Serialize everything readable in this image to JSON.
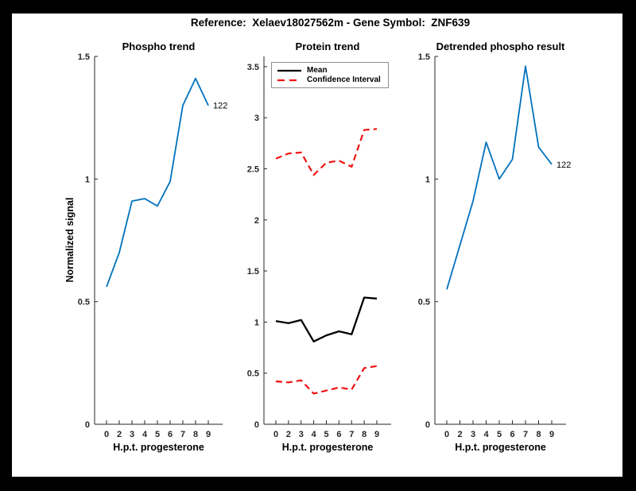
{
  "window": {
    "background_color": "#000000",
    "canvas_color": "#ffffff"
  },
  "header": {
    "suptitle": "Reference:  Xelaev18027562m - Gene Symbol:  ZNF639"
  },
  "colors": {
    "signal_blue": "#0072BD",
    "mean_black": "#000000",
    "ci_red": "#f01414",
    "axis_gray": "#262626"
  },
  "chart_data": [
    {
      "id": "phospho-trend",
      "type": "line",
      "title": "Phospho trend",
      "xlabel": "H.p.t. progesterone",
      "ylabel": "Normalized signal",
      "x_tick_labels": [
        "0",
        "2",
        "3",
        "4",
        "5",
        "6",
        "7",
        "8",
        "9"
      ],
      "yticks": [
        0,
        0.5,
        1,
        1.5
      ],
      "y_tick_labels": [
        "0",
        "0.5",
        "1",
        "1.5"
      ],
      "ylim": [
        0,
        1.5
      ],
      "legend_position": "none",
      "grid": false,
      "series": [
        {
          "name": "Phospho normalized signal",
          "color": "#0072BD",
          "dash": "",
          "width": 1.8,
          "values": [
            0.56,
            0.7,
            0.91,
            0.92,
            0.89,
            0.99,
            1.3,
            1.41,
            1.3
          ]
        }
      ],
      "end_label": "122"
    },
    {
      "id": "protein-trend",
      "type": "line",
      "title": "Protein trend",
      "xlabel": "H.p.t. progesterone",
      "ylabel": "",
      "x_tick_labels": [
        "0",
        "2",
        "3",
        "4",
        "5",
        "6",
        "7",
        "8",
        "9"
      ],
      "yticks": [
        0,
        0.5,
        1,
        1.5,
        2,
        2.5,
        3,
        3.5
      ],
      "y_tick_labels": [
        "0",
        "0.5",
        "1",
        "1.5",
        "2",
        "2.5",
        "3",
        "3.5"
      ],
      "ylim": [
        0,
        3.6
      ],
      "legend_position": "northwest",
      "grid": false,
      "series": [
        {
          "name": "Mean",
          "color": "#000000",
          "dash": "",
          "width": 2.3,
          "values": [
            1.01,
            0.99,
            1.02,
            0.81,
            0.87,
            0.91,
            0.88,
            1.24,
            1.23
          ]
        },
        {
          "name": "Confidence Interval upper",
          "color": "#f01414",
          "dash": "8 5",
          "width": 2.2,
          "values": [
            2.6,
            2.65,
            2.66,
            2.44,
            2.56,
            2.58,
            2.52,
            2.88,
            2.89
          ]
        },
        {
          "name": "Confidence Interval lower",
          "color": "#f01414",
          "dash": "8 5",
          "width": 2.2,
          "values": [
            0.42,
            0.41,
            0.43,
            0.3,
            0.33,
            0.36,
            0.34,
            0.55,
            0.57
          ]
        }
      ],
      "legend": [
        {
          "label": "Mean",
          "color": "#000000",
          "dash": ""
        },
        {
          "label": "Confidence Interval",
          "color": "#f01414",
          "dash": "9 6"
        }
      ],
      "end_label": ""
    },
    {
      "id": "detrended-phospho-result",
      "type": "line",
      "title": "Detrended phospho result",
      "xlabel": "H.p.t. progesterone",
      "ylabel": "",
      "x_tick_labels": [
        "0",
        "2",
        "3",
        "4",
        "5",
        "6",
        "7",
        "8",
        "9"
      ],
      "yticks": [
        0,
        0.5,
        1,
        1.5
      ],
      "y_tick_labels": [
        "0",
        "0.5",
        "1",
        "1.5"
      ],
      "ylim": [
        0,
        1.5
      ],
      "legend_position": "none",
      "grid": false,
      "series": [
        {
          "name": "Detrended phospho signal",
          "color": "#0072BD",
          "dash": "",
          "width": 1.8,
          "values": [
            0.55,
            0.73,
            0.91,
            1.15,
            1.0,
            1.08,
            1.46,
            1.13,
            1.06
          ]
        }
      ],
      "end_label": "122"
    }
  ]
}
